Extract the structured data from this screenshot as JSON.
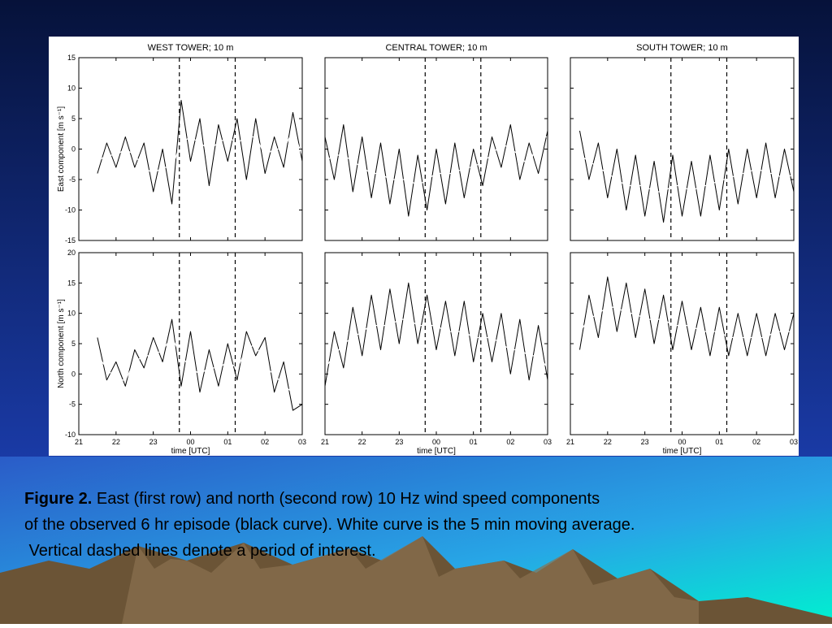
{
  "chart_data": [
    {
      "type": "line",
      "title": "WEST TOWER; 10 m",
      "ylabel": "East component [m s⁻¹]",
      "x": [
        21.5,
        21.75,
        22,
        22.25,
        22.5,
        22.75,
        23,
        23.25,
        23.5,
        23.75,
        24,
        24.25,
        24.5,
        24.75,
        25,
        25.25,
        25.5,
        25.75,
        26,
        26.25,
        26.5,
        26.75,
        27
      ],
      "series": [
        {
          "color": "#000000",
          "values": [
            -4,
            1,
            -3,
            2,
            -3,
            1,
            -7,
            0,
            -9,
            8,
            -2,
            5,
            -6,
            4,
            -2,
            5,
            -5,
            5,
            -4,
            2,
            -3,
            6,
            -2
          ]
        },
        {
          "color": "#ffffff",
          "values": [
            -2,
            -1,
            -1,
            0,
            -1,
            -3,
            -4,
            -3,
            -3,
            1,
            2,
            1,
            0,
            1,
            2,
            1,
            2,
            2,
            -1,
            0,
            0,
            3,
            -1
          ]
        }
      ],
      "vlines": [
        23.7,
        25.2
      ],
      "xlim": [
        21,
        27
      ],
      "ylim": [
        -15,
        15
      ],
      "xticks": [
        21,
        22,
        23,
        {
          "value": 24,
          "label": "00"
        },
        {
          "value": 25,
          "label": "01"
        },
        {
          "value": 26,
          "label": "02"
        },
        {
          "value": 27,
          "label": "03"
        }
      ],
      "yticks": [
        -15,
        -10,
        -5,
        0,
        5,
        10,
        15
      ],
      "xtick_labels": false,
      "ytick_labels": true
    },
    {
      "type": "line",
      "title": "CENTRAL TOWER; 10 m",
      "x": [
        21,
        21.25,
        21.5,
        21.75,
        22,
        22.25,
        22.5,
        22.75,
        23,
        23.25,
        23.5,
        23.75,
        24,
        24.25,
        24.5,
        24.75,
        25,
        25.25,
        25.5,
        25.75,
        26,
        26.25,
        26.5,
        26.75,
        27
      ],
      "series": [
        {
          "color": "#000000",
          "values": [
            2,
            -5,
            4,
            -7,
            2,
            -8,
            1,
            -9,
            0,
            -11,
            -1,
            -10,
            0,
            -9,
            1,
            -8,
            0,
            -6,
            2,
            -3,
            4,
            -5,
            1,
            -4,
            3
          ]
        },
        {
          "color": "#ffffff",
          "values": [
            -2,
            -1,
            -1,
            -2,
            -3,
            -4,
            -4,
            -5,
            -5,
            -5,
            -6,
            -5,
            -4,
            -4,
            -4,
            -3,
            -3,
            -2,
            -1,
            1,
            0,
            -1,
            -3,
            2,
            2
          ]
        }
      ],
      "vlines": [
        23.7,
        25.2
      ],
      "xlim": [
        21,
        27
      ],
      "ylim": [
        -15,
        15
      ],
      "xticks": [
        21,
        22,
        23,
        {
          "value": 24,
          "label": "00"
        },
        {
          "value": 25,
          "label": "01"
        },
        {
          "value": 26,
          "label": "02"
        },
        {
          "value": 27,
          "label": "03"
        }
      ],
      "yticks": [
        -15,
        -10,
        -5,
        0,
        5,
        10,
        15
      ],
      "xtick_labels": false,
      "ytick_labels": false
    },
    {
      "type": "line",
      "title": "SOUTH TOWER; 10 m",
      "x": [
        21.25,
        21.5,
        21.75,
        22,
        22.25,
        22.5,
        22.75,
        23,
        23.25,
        23.5,
        23.75,
        24,
        24.25,
        24.5,
        24.75,
        25,
        25.25,
        25.5,
        25.75,
        26,
        26.25,
        26.5,
        26.75,
        27
      ],
      "series": [
        {
          "color": "#000000",
          "values": [
            3,
            -5,
            1,
            -8,
            0,
            -10,
            -1,
            -11,
            -2,
            -12,
            -1,
            -11,
            -2,
            -11,
            -1,
            -10,
            0,
            -9,
            0,
            -8,
            1,
            -8,
            0,
            -7
          ]
        },
        {
          "color": "#ffffff",
          "values": [
            -1,
            -2,
            -3,
            -4,
            -5,
            -6,
            -6,
            -6,
            -7,
            -7,
            -6,
            -6,
            -7,
            -6,
            -6,
            -5,
            -5,
            -4,
            -4,
            -3,
            -4,
            -4,
            -5,
            -4
          ]
        }
      ],
      "vlines": [
        23.7,
        25.2
      ],
      "xlim": [
        21,
        27
      ],
      "ylim": [
        -15,
        15
      ],
      "xticks": [
        21,
        22,
        23,
        {
          "value": 24,
          "label": "00"
        },
        {
          "value": 25,
          "label": "01"
        },
        {
          "value": 26,
          "label": "02"
        },
        {
          "value": 27,
          "label": "03"
        }
      ],
      "yticks": [
        -15,
        -10,
        -5,
        0,
        5,
        10,
        15
      ],
      "xtick_labels": false,
      "ytick_labels": false
    },
    {
      "type": "line",
      "ylabel": "North component [m s⁻¹]",
      "xlabel": "time [UTC]",
      "x": [
        21.5,
        21.75,
        22,
        22.25,
        22.5,
        22.75,
        23,
        23.25,
        23.5,
        23.75,
        24,
        24.25,
        24.5,
        24.75,
        25,
        25.25,
        25.5,
        25.75,
        26,
        26.25,
        26.5,
        26.75,
        27
      ],
      "series": [
        {
          "color": "#000000",
          "values": [
            6,
            -1,
            2,
            -2,
            4,
            1,
            6,
            2,
            9,
            -2,
            7,
            -3,
            4,
            -2,
            5,
            -1,
            7,
            3,
            6,
            -3,
            2,
            -6,
            -5
          ]
        },
        {
          "color": "#ffffff",
          "values": [
            3,
            1,
            -1,
            -1,
            2,
            3,
            3,
            4,
            6,
            3,
            1,
            0,
            1,
            1,
            2,
            1,
            4,
            5,
            1,
            0,
            -2,
            -3,
            -4
          ]
        }
      ],
      "vlines": [
        23.7,
        25.2
      ],
      "xlim": [
        21,
        27
      ],
      "ylim": [
        -10,
        20
      ],
      "xticks": [
        21,
        22,
        23,
        {
          "value": 24,
          "label": "00"
        },
        {
          "value": 25,
          "label": "01"
        },
        {
          "value": 26,
          "label": "02"
        },
        {
          "value": 27,
          "label": "03"
        }
      ],
      "yticks": [
        -10,
        -5,
        0,
        5,
        10,
        15,
        20
      ],
      "xtick_labels": true,
      "ytick_labels": true
    },
    {
      "type": "line",
      "xlabel": "time [UTC]",
      "x": [
        21,
        21.25,
        21.5,
        21.75,
        22,
        22.25,
        22.5,
        22.75,
        23,
        23.25,
        23.5,
        23.75,
        24,
        24.25,
        24.5,
        24.75,
        25,
        25.25,
        25.5,
        25.75,
        26,
        26.25,
        26.5,
        26.75,
        27
      ],
      "series": [
        {
          "color": "#000000",
          "values": [
            -2,
            7,
            1,
            11,
            3,
            13,
            4,
            14,
            5,
            15,
            5,
            13,
            4,
            12,
            3,
            12,
            2,
            10,
            2,
            10,
            0,
            9,
            -1,
            8,
            -1
          ]
        },
        {
          "color": "#ffffff",
          "values": [
            1,
            3,
            5,
            6,
            7,
            8,
            8,
            8,
            9,
            9,
            8,
            8,
            8,
            7,
            7,
            7,
            6,
            6,
            6,
            5,
            4,
            4,
            3,
            3,
            1
          ]
        }
      ],
      "vlines": [
        23.7,
        25.2
      ],
      "xlim": [
        21,
        27
      ],
      "ylim": [
        -10,
        20
      ],
      "xticks": [
        21,
        22,
        23,
        {
          "value": 24,
          "label": "00"
        },
        {
          "value": 25,
          "label": "01"
        },
        {
          "value": 26,
          "label": "02"
        },
        {
          "value": 27,
          "label": "03"
        }
      ],
      "yticks": [
        -10,
        -5,
        0,
        5,
        10,
        15,
        20
      ],
      "xtick_labels": true,
      "ytick_labels": false
    },
    {
      "type": "line",
      "xlabel": "time [UTC]",
      "x": [
        21.25,
        21.5,
        21.75,
        22,
        22.25,
        22.5,
        22.75,
        23,
        23.25,
        23.5,
        23.75,
        24,
        24.25,
        24.5,
        24.75,
        25,
        25.25,
        25.5,
        25.75,
        26,
        26.25,
        26.5,
        26.75,
        27
      ],
      "series": [
        {
          "color": "#000000",
          "values": [
            4,
            13,
            6,
            16,
            7,
            15,
            6,
            14,
            5,
            13,
            4,
            12,
            4,
            11,
            3,
            11,
            3,
            10,
            3,
            10,
            3,
            10,
            4,
            10
          ]
        },
        {
          "color": "#ffffff",
          "values": [
            7,
            9,
            10,
            11,
            11,
            10,
            10,
            9,
            9,
            9,
            8,
            8,
            8,
            7,
            7,
            7,
            6,
            6,
            6,
            6,
            6,
            7,
            7,
            7
          ]
        }
      ],
      "vlines": [
        23.7,
        25.2
      ],
      "xlim": [
        21,
        27
      ],
      "ylim": [
        -10,
        20
      ],
      "xticks": [
        21,
        22,
        23,
        {
          "value": 24,
          "label": "00"
        },
        {
          "value": 25,
          "label": "01"
        },
        {
          "value": 26,
          "label": "02"
        },
        {
          "value": 27,
          "label": "03"
        }
      ],
      "yticks": [
        -10,
        -5,
        0,
        5,
        10,
        15,
        20
      ],
      "xtick_labels": true,
      "ytick_labels": false
    }
  ],
  "caption": {
    "label": "Figure 2.",
    "lines": [
      "East (first row) and north (second row) 10 Hz wind speed components",
      "of the observed 6 hr episode (black curve). White curve is the 5 min moving average.",
      " Vertical dashed lines denote a period of interest."
    ]
  }
}
